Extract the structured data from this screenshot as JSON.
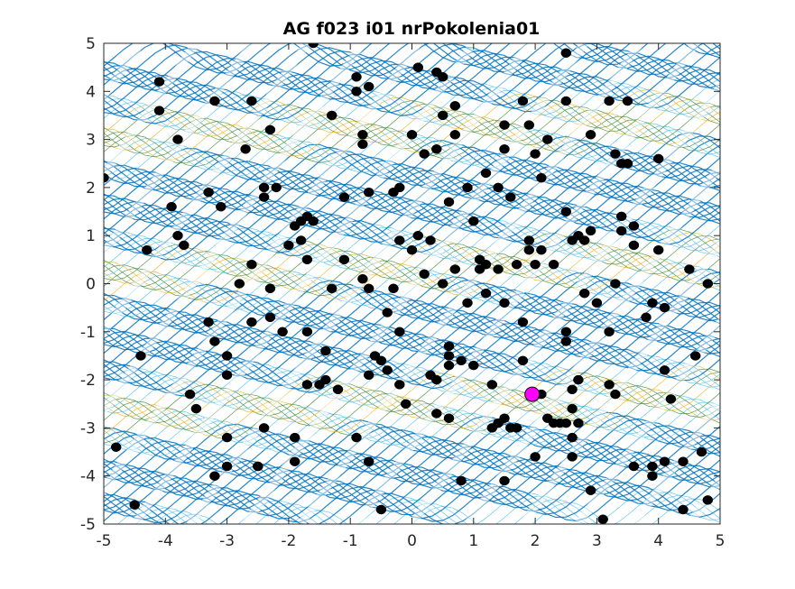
{
  "chart_data": {
    "type": "scatter",
    "title": "AG f023 i01 nrPokolenia01",
    "xlabel": "",
    "ylabel": "",
    "xlim": [
      -5,
      5
    ],
    "ylim": [
      -5,
      5
    ],
    "xticks": [
      -5,
      -4,
      -3,
      -2,
      -1,
      0,
      1,
      2,
      3,
      4,
      5
    ],
    "yticks": [
      -5,
      -4,
      -3,
      -2,
      -1,
      0,
      1,
      2,
      3,
      4,
      5
    ],
    "background": "contour",
    "grid": false,
    "legend": "none",
    "colors": {
      "point": "#000000",
      "best_point": "#ff00ff",
      "contour_dark": "#0072bd",
      "contour_light": "#4dbeee",
      "contour_yellow": "#edb120",
      "contour_green": "#3c8a2e"
    },
    "series": [
      {
        "role": "population",
        "points": [
          [
            -5.0,
            2.2
          ],
          [
            -4.8,
            -3.4
          ],
          [
            -4.5,
            -4.6
          ],
          [
            -4.4,
            -1.5
          ],
          [
            -4.3,
            0.7
          ],
          [
            -4.1,
            4.2
          ],
          [
            -4.1,
            3.6
          ],
          [
            -3.9,
            1.6
          ],
          [
            -3.8,
            3.0
          ],
          [
            -3.8,
            1.0
          ],
          [
            -3.7,
            0.8
          ],
          [
            -3.6,
            -2.3
          ],
          [
            -3.5,
            -2.6
          ],
          [
            -3.3,
            1.9
          ],
          [
            -3.3,
            -0.8
          ],
          [
            -3.2,
            3.8
          ],
          [
            -3.2,
            -1.2
          ],
          [
            -3.2,
            -4.0
          ],
          [
            -3.1,
            1.6
          ],
          [
            -3.0,
            -1.5
          ],
          [
            -3.0,
            -1.9
          ],
          [
            -3.0,
            -3.2
          ],
          [
            -3.0,
            -3.8
          ],
          [
            -2.8,
            0.0
          ],
          [
            -2.7,
            2.8
          ],
          [
            -2.6,
            3.8
          ],
          [
            -2.6,
            0.4
          ],
          [
            -2.6,
            -0.8
          ],
          [
            -2.5,
            -3.8
          ],
          [
            -2.5,
            -3.8
          ],
          [
            -2.4,
            2.0
          ],
          [
            -2.4,
            1.8
          ],
          [
            -2.4,
            -3.0
          ],
          [
            -2.3,
            -0.7
          ],
          [
            -2.3,
            -0.1
          ],
          [
            -2.3,
            3.2
          ],
          [
            -2.2,
            2.0
          ],
          [
            -2.1,
            -1.0
          ],
          [
            -2.0,
            0.8
          ],
          [
            -1.9,
            1.2
          ],
          [
            -1.9,
            -3.2
          ],
          [
            -1.9,
            -3.7
          ],
          [
            -1.8,
            1.3
          ],
          [
            -1.8,
            0.9
          ],
          [
            -1.7,
            -2.1
          ],
          [
            -1.7,
            1.4
          ],
          [
            -1.7,
            0.5
          ],
          [
            -1.7,
            -1.0
          ],
          [
            -1.6,
            1.3
          ],
          [
            -1.6,
            5.0
          ],
          [
            -1.5,
            -2.1
          ],
          [
            -1.4,
            -1.4
          ],
          [
            -1.4,
            -2.0
          ],
          [
            -1.3,
            3.5
          ],
          [
            -1.3,
            -0.1
          ],
          [
            -1.2,
            -2.2
          ],
          [
            -1.1,
            1.8
          ],
          [
            -1.1,
            0.5
          ],
          [
            -0.9,
            4.3
          ],
          [
            -0.9,
            4.0
          ],
          [
            -0.9,
            -3.2
          ],
          [
            -0.8,
            3.1
          ],
          [
            -0.8,
            2.9
          ],
          [
            -0.8,
            0.1
          ],
          [
            -0.7,
            4.1
          ],
          [
            -0.7,
            1.9
          ],
          [
            -0.7,
            -0.1
          ],
          [
            -0.7,
            -1.9
          ],
          [
            -0.7,
            -3.7
          ],
          [
            -0.6,
            -1.5
          ],
          [
            -0.5,
            -1.6
          ],
          [
            -0.5,
            -4.7
          ],
          [
            -0.4,
            -0.6
          ],
          [
            -0.4,
            -1.8
          ],
          [
            -0.3,
            1.9
          ],
          [
            -0.3,
            -0.1
          ],
          [
            -0.2,
            2.0
          ],
          [
            -0.2,
            0.9
          ],
          [
            -0.2,
            -1.0
          ],
          [
            -0.2,
            -2.1
          ],
          [
            -0.1,
            -2.5
          ],
          [
            0.0,
            3.1
          ],
          [
            0.0,
            0.7
          ],
          [
            0.1,
            1.0
          ],
          [
            0.1,
            4.5
          ],
          [
            0.2,
            0.2
          ],
          [
            0.2,
            2.7
          ],
          [
            0.3,
            0.9
          ],
          [
            0.3,
            -1.9
          ],
          [
            0.4,
            4.4
          ],
          [
            0.4,
            2.8
          ],
          [
            0.4,
            -2.0
          ],
          [
            0.4,
            -2.7
          ],
          [
            0.5,
            3.5
          ],
          [
            0.5,
            4.3
          ],
          [
            0.5,
            0.0
          ],
          [
            0.6,
            1.7
          ],
          [
            0.6,
            -1.3
          ],
          [
            0.6,
            -1.7
          ],
          [
            0.6,
            -2.8
          ],
          [
            0.6,
            -1.5
          ],
          [
            0.7,
            3.1
          ],
          [
            0.7,
            3.7
          ],
          [
            0.7,
            0.3
          ],
          [
            0.8,
            -1.6
          ],
          [
            0.8,
            -4.1
          ],
          [
            0.9,
            2.0
          ],
          [
            0.9,
            -0.4
          ],
          [
            1.0,
            1.3
          ],
          [
            1.0,
            -1.7
          ],
          [
            1.1,
            0.5
          ],
          [
            1.1,
            0.3
          ],
          [
            1.2,
            -0.2
          ],
          [
            1.2,
            2.3
          ],
          [
            1.2,
            0.4
          ],
          [
            1.3,
            -3.0
          ],
          [
            1.3,
            -2.1
          ],
          [
            1.4,
            2.0
          ],
          [
            1.4,
            0.3
          ],
          [
            1.4,
            -2.9
          ],
          [
            1.5,
            -2.8
          ],
          [
            1.5,
            3.3
          ],
          [
            1.5,
            2.8
          ],
          [
            1.5,
            -0.4
          ],
          [
            1.5,
            -4.1
          ],
          [
            1.6,
            1.8
          ],
          [
            1.6,
            -3.0
          ],
          [
            1.7,
            0.4
          ],
          [
            1.7,
            -3.0
          ],
          [
            1.8,
            3.8
          ],
          [
            1.8,
            -1.6
          ],
          [
            1.8,
            -0.8
          ],
          [
            1.9,
            3.3
          ],
          [
            1.9,
            0.9
          ],
          [
            1.9,
            0.7
          ],
          [
            2.0,
            2.7
          ],
          [
            2.0,
            -3.6
          ],
          [
            2.0,
            0.4
          ],
          [
            2.1,
            2.2
          ],
          [
            2.1,
            0.7
          ],
          [
            2.1,
            -2.3
          ],
          [
            2.2,
            3.0
          ],
          [
            2.2,
            -2.8
          ],
          [
            2.3,
            0.4
          ],
          [
            2.3,
            -2.9
          ],
          [
            2.4,
            -2.9
          ],
          [
            2.5,
            -2.9
          ],
          [
            2.5,
            3.8
          ],
          [
            2.5,
            4.8
          ],
          [
            2.5,
            1.5
          ],
          [
            2.5,
            -1.2
          ],
          [
            2.5,
            -1.0
          ],
          [
            2.6,
            -2.6
          ],
          [
            2.6,
            0.9
          ],
          [
            2.6,
            -3.2
          ],
          [
            2.6,
            -2.2
          ],
          [
            2.6,
            -3.6
          ],
          [
            2.7,
            1.0
          ],
          [
            2.7,
            -2.0
          ],
          [
            2.7,
            -2.9
          ],
          [
            2.8,
            0.9
          ],
          [
            2.8,
            -0.2
          ],
          [
            2.9,
            1.1
          ],
          [
            2.9,
            3.1
          ],
          [
            2.9,
            -4.3
          ],
          [
            3.0,
            -0.4
          ],
          [
            3.1,
            -4.9
          ],
          [
            3.2,
            3.8
          ],
          [
            3.2,
            -2.1
          ],
          [
            3.3,
            2.7
          ],
          [
            3.3,
            0.0
          ],
          [
            3.3,
            -2.3
          ],
          [
            3.4,
            1.4
          ],
          [
            3.4,
            1.1
          ],
          [
            3.4,
            2.5
          ],
          [
            3.5,
            3.8
          ],
          [
            3.5,
            2.5
          ],
          [
            3.6,
            0.8
          ],
          [
            3.6,
            1.2
          ],
          [
            3.8,
            -0.7
          ],
          [
            3.9,
            -4.0
          ],
          [
            3.9,
            -3.8
          ],
          [
            4.0,
            2.6
          ],
          [
            4.1,
            -1.8
          ],
          [
            4.1,
            -0.5
          ],
          [
            4.1,
            -3.7
          ],
          [
            4.2,
            -2.4
          ],
          [
            4.4,
            -4.7
          ],
          [
            4.4,
            -3.7
          ],
          [
            4.5,
            0.3
          ],
          [
            4.6,
            -1.5
          ],
          [
            4.7,
            -3.5
          ],
          [
            4.8,
            0.0
          ],
          [
            4.8,
            -4.5
          ],
          [
            4.0,
            0.7
          ],
          [
            3.2,
            -1.0
          ],
          [
            3.9,
            -0.4
          ],
          [
            3.6,
            -3.8
          ]
        ]
      },
      {
        "role": "best",
        "points": [
          [
            1.95,
            -2.3
          ]
        ]
      }
    ]
  }
}
